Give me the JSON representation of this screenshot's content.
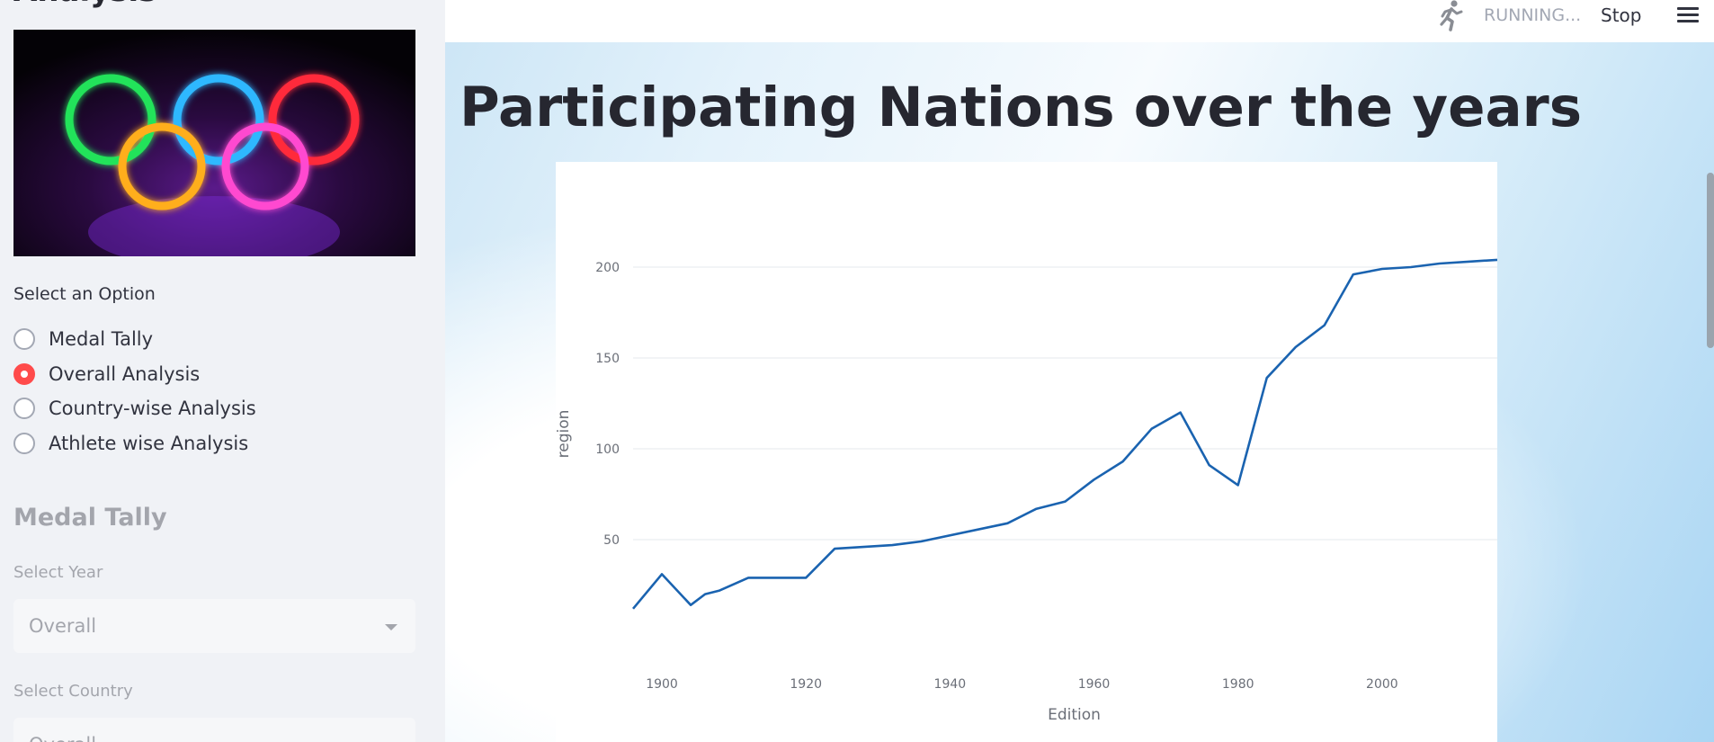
{
  "sidebar": {
    "heading": "Analysis",
    "option_label": "Select an Option",
    "options": [
      {
        "label": "Medal Tally",
        "selected": false
      },
      {
        "label": "Overall Analysis",
        "selected": true
      },
      {
        "label": "Country-wise Analysis",
        "selected": false
      },
      {
        "label": "Athlete wise Analysis",
        "selected": false
      }
    ],
    "medal_section": {
      "heading": "Medal Tally",
      "year_label": "Select Year",
      "year_value": "Overall",
      "country_label": "Select Country",
      "country_value": "Overall"
    }
  },
  "toolbar": {
    "status": "RUNNING...",
    "stop_label": "Stop"
  },
  "main": {
    "title": "Participating Nations over the years"
  },
  "colors": {
    "accent": "#ff4b4b",
    "line": "#1a63b0",
    "sidebar_bg": "#f0f2f6"
  },
  "icons": {
    "running": "running-man-icon",
    "menu": "hamburger-menu-icon",
    "dropdown": "chevron-down-icon"
  },
  "chart_data": {
    "type": "line",
    "title": "",
    "xlabel": "Edition",
    "ylabel": "region",
    "xlim": [
      1896,
      2016
    ],
    "ylim": [
      0,
      210
    ],
    "xticks": [
      1900,
      1920,
      1940,
      1960,
      1980,
      2000
    ],
    "yticks": [
      50,
      100,
      150,
      200
    ],
    "grid": true,
    "series": [
      {
        "x": [
          1896,
          1900,
          1904,
          1906,
          1908,
          1912,
          1920,
          1924,
          1928,
          1932,
          1936,
          1948,
          1952,
          1956,
          1960,
          1964,
          1968,
          1972,
          1976,
          1980,
          1984,
          1988,
          1992,
          1996,
          2000,
          2004,
          2008,
          2012,
          2016
        ],
        "y": [
          12,
          31,
          14,
          20,
          22,
          29,
          29,
          45,
          46,
          47,
          49,
          59,
          67,
          71,
          83,
          93,
          111,
          120,
          91,
          80,
          139,
          156,
          168,
          196,
          199,
          200,
          202,
          203,
          204
        ]
      }
    ]
  }
}
